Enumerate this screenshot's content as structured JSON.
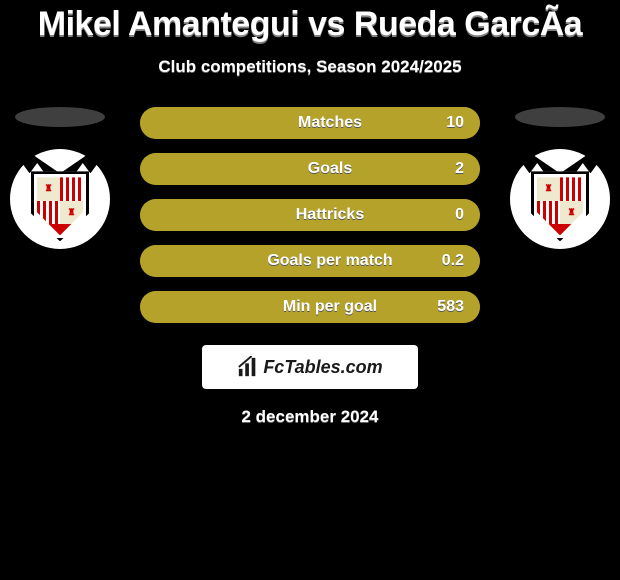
{
  "title": "Mikel Amantegui vs Rueda GarcÃ­a",
  "subtitle": "Club competitions, Season 2024/2025",
  "date_line": "2 december 2024",
  "brand": {
    "text": "FcTables.com",
    "icon_name": "bar-chart-icon",
    "bg_color": "#ffffff",
    "text_color": "#1a1a1a"
  },
  "colors": {
    "page_bg": "#000000",
    "bar_bg": "#a99727",
    "bar_fill": "#b5a22b",
    "shadow_ellipse": "#3f3f3f",
    "text": "#ffffff"
  },
  "stats": [
    {
      "label": "Matches",
      "value": "10",
      "fill_pct": 100
    },
    {
      "label": "Goals",
      "value": "2",
      "fill_pct": 100
    },
    {
      "label": "Hattricks",
      "value": "0",
      "fill_pct": 100
    },
    {
      "label": "Goals per match",
      "value": "0.2",
      "fill_pct": 100
    },
    {
      "label": "Min per goal",
      "value": "583",
      "fill_pct": 100
    }
  ],
  "clubs": {
    "left": {
      "name": "club-left"
    },
    "right": {
      "name": "club-right"
    }
  }
}
